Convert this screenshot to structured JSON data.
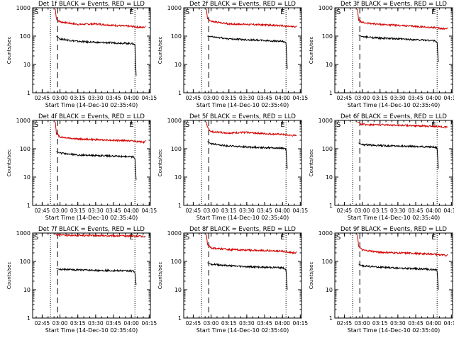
{
  "colors": {
    "events": "#000000",
    "lld": "#d40000",
    "axes": "#000000"
  },
  "chart_data": [
    {
      "type": "line",
      "title": "Det 1f BLACK = Events, RED = LLD",
      "xlabel": "Start Time (14-Dec-10 02:35:40)",
      "ylabel": "Counts/sec",
      "x_ticks": [
        "02:45",
        "03:00",
        "03:15",
        "03:30",
        "03:45",
        "04:00",
        "04:15"
      ],
      "y_ticks": [
        "1",
        "10",
        "100",
        "1000"
      ],
      "y_scale": "log",
      "ylim": [
        1,
        1000
      ],
      "markers": [
        "S",
        "E"
      ],
      "series": [
        {
          "color": "red",
          "x": [
            "02:56",
            "02:57",
            "03:00",
            "03:15",
            "03:30",
            "03:45",
            "04:00",
            "04:05",
            "04:11",
            "04:12"
          ],
          "values": [
            900,
            400,
            320,
            260,
            270,
            240,
            220,
            210,
            200,
            230
          ]
        },
        {
          "color": "black",
          "x": [
            "02:57",
            "03:00",
            "03:15",
            "03:30",
            "03:45",
            "04:00",
            "04:02",
            "04:03",
            "04:04"
          ],
          "values": [
            100,
            80,
            65,
            60,
            58,
            55,
            52,
            50,
            4
          ]
        }
      ]
    },
    {
      "type": "line",
      "title": "Det 2f BLACK = Events, RED = LLD",
      "xlabel": "Start Time (14-Dec-10 02:35:40)",
      "ylabel": "Counts/sec",
      "x_ticks": [
        "02:45",
        "03:00",
        "03:15",
        "03:30",
        "03:45",
        "04:00",
        "04:15"
      ],
      "y_ticks": [
        "1",
        "10",
        "100",
        "1000"
      ],
      "y_scale": "log",
      "ylim": [
        1,
        1000
      ],
      "markers": [
        "S",
        "E"
      ],
      "series": [
        {
          "color": "red",
          "x": [
            "02:56",
            "02:57",
            "03:00",
            "03:15",
            "03:30",
            "03:45",
            "04:00",
            "04:05",
            "04:11",
            "04:12"
          ],
          "values": [
            900,
            420,
            330,
            270,
            260,
            250,
            230,
            220,
            210,
            230
          ]
        },
        {
          "color": "black",
          "x": [
            "02:57",
            "03:00",
            "03:15",
            "03:30",
            "03:45",
            "04:00",
            "04:02",
            "04:03",
            "04:04"
          ],
          "values": [
            100,
            95,
            80,
            75,
            70,
            65,
            60,
            55,
            7
          ]
        }
      ]
    },
    {
      "type": "line",
      "title": "Det 3f BLACK = Events, RED = LLD",
      "xlabel": "Start Time (14-Dec-10 02:35:40)",
      "ylabel": "Counts/sec",
      "x_ticks": [
        "02:45",
        "03:00",
        "03:15",
        "03:30",
        "03:45",
        "04:00",
        "04:15"
      ],
      "y_ticks": [
        "1",
        "10",
        "100",
        "1000"
      ],
      "y_scale": "log",
      "ylim": [
        1,
        1000
      ],
      "markers": [
        "S",
        "E"
      ],
      "series": [
        {
          "color": "red",
          "x": [
            "02:56",
            "02:57",
            "03:00",
            "03:15",
            "03:30",
            "03:45",
            "04:00",
            "04:05",
            "04:11",
            "04:12"
          ],
          "values": [
            900,
            380,
            300,
            260,
            240,
            220,
            200,
            190,
            180,
            200
          ]
        },
        {
          "color": "black",
          "x": [
            "02:57",
            "03:00",
            "03:15",
            "03:30",
            "03:45",
            "04:00",
            "04:02",
            "04:03",
            "04:04"
          ],
          "values": [
            110,
            95,
            85,
            80,
            75,
            70,
            65,
            60,
            12
          ]
        }
      ]
    },
    {
      "type": "line",
      "title": "Det 4f BLACK = Events, RED = LLD",
      "xlabel": "Start Time (14-Dec-10 02:35:40)",
      "ylabel": "Counts/sec",
      "x_ticks": [
        "02:45",
        "03:00",
        "03:15",
        "03:30",
        "03:45",
        "04:00",
        "04:15"
      ],
      "y_ticks": [
        "1",
        "10",
        "100",
        "1000"
      ],
      "y_scale": "log",
      "ylim": [
        1,
        1000
      ],
      "markers": [
        "S",
        "E"
      ],
      "series": [
        {
          "color": "red",
          "x": [
            "02:56",
            "02:57",
            "03:00",
            "03:15",
            "03:30",
            "03:45",
            "04:00",
            "04:05",
            "04:11",
            "04:12"
          ],
          "values": [
            900,
            350,
            260,
            220,
            210,
            200,
            190,
            180,
            170,
            200
          ]
        },
        {
          "color": "black",
          "x": [
            "02:57",
            "03:00",
            "03:15",
            "03:30",
            "03:45",
            "04:00",
            "04:02",
            "04:03",
            "04:04"
          ],
          "values": [
            80,
            70,
            60,
            58,
            55,
            52,
            50,
            45,
            8
          ]
        }
      ]
    },
    {
      "type": "line",
      "title": "Det 5f BLACK = Events, RED = LLD",
      "xlabel": "Start Time (14-Dec-10 02:35:40)",
      "ylabel": "Counts/sec",
      "x_ticks": [
        "02:45",
        "03:00",
        "03:15",
        "03:30",
        "03:45",
        "04:00",
        "04:15"
      ],
      "y_ticks": [
        "1",
        "10",
        "100",
        "1000"
      ],
      "y_scale": "log",
      "ylim": [
        1,
        1000
      ],
      "markers": [
        "S",
        "E"
      ],
      "series": [
        {
          "color": "red",
          "x": [
            "02:56",
            "02:57",
            "03:00",
            "03:15",
            "03:30",
            "03:45",
            "04:00",
            "04:05",
            "04:11",
            "04:12"
          ],
          "values": [
            900,
            550,
            400,
            360,
            380,
            340,
            320,
            300,
            290,
            300
          ]
        },
        {
          "color": "black",
          "x": [
            "02:57",
            "03:00",
            "03:15",
            "03:30",
            "03:45",
            "04:00",
            "04:02",
            "04:03",
            "04:04"
          ],
          "values": [
            180,
            150,
            125,
            115,
            110,
            105,
            100,
            95,
            20
          ]
        }
      ]
    },
    {
      "type": "line",
      "title": "Det 6f BLACK = Events, RED = LLD",
      "xlabel": "Start Time (14-Dec-10 02:35:40)",
      "ylabel": "Counts/sec",
      "x_ticks": [
        "02:45",
        "03:00",
        "03:15",
        "03:30",
        "03:45",
        "04:00",
        "04:15"
      ],
      "y_ticks": [
        "1",
        "10",
        "100",
        "1000"
      ],
      "y_scale": "log",
      "ylim": [
        1,
        1000
      ],
      "markers": [
        "S",
        "E"
      ],
      "series": [
        {
          "color": "red",
          "x": [
            "02:56",
            "02:57",
            "03:00",
            "03:15",
            "03:30",
            "03:45",
            "04:00",
            "04:05",
            "04:11",
            "04:12"
          ],
          "values": [
            900,
            800,
            720,
            700,
            680,
            650,
            620,
            600,
            580,
            600
          ]
        },
        {
          "color": "black",
          "x": [
            "02:57",
            "03:00",
            "03:15",
            "03:30",
            "03:45",
            "04:00",
            "04:02",
            "04:03",
            "04:04"
          ],
          "values": [
            160,
            140,
            130,
            125,
            120,
            115,
            110,
            105,
            20
          ]
        }
      ]
    },
    {
      "type": "line",
      "title": "Det 7f BLACK = Events, RED = LLD",
      "xlabel": "Start Time (14-Dec-10 02:35:40)",
      "ylabel": "Counts/sec",
      "x_ticks": [
        "02:45",
        "03:00",
        "03:15",
        "03:30",
        "03:45",
        "04:00",
        "04:15"
      ],
      "y_ticks": [
        "1",
        "10",
        "100",
        "1000"
      ],
      "y_scale": "log",
      "ylim": [
        1,
        1000
      ],
      "markers": [
        "S",
        "E"
      ],
      "series": [
        {
          "color": "red",
          "x": [
            "02:56",
            "02:57",
            "03:00",
            "03:15",
            "03:30",
            "03:45",
            "04:00",
            "04:05",
            "04:11",
            "04:12"
          ],
          "values": [
            950,
            880,
            850,
            830,
            810,
            800,
            790,
            780,
            760,
            780
          ]
        },
        {
          "color": "black",
          "x": [
            "02:57",
            "03:00",
            "03:15",
            "03:30",
            "03:45",
            "04:00",
            "04:02",
            "04:03",
            "04:04"
          ],
          "values": [
            55,
            52,
            50,
            48,
            47,
            46,
            45,
            40,
            15
          ]
        }
      ]
    },
    {
      "type": "line",
      "title": "Det 8f BLACK = Events, RED = LLD",
      "xlabel": "Start Time (14-Dec-10 02:35:40)",
      "ylabel": "Counts/sec",
      "x_ticks": [
        "02:45",
        "03:00",
        "03:15",
        "03:30",
        "03:45",
        "04:00",
        "04:15"
      ],
      "y_ticks": [
        "1",
        "10",
        "100",
        "1000"
      ],
      "y_scale": "log",
      "ylim": [
        1,
        1000
      ],
      "markers": [
        "S",
        "E"
      ],
      "series": [
        {
          "color": "red",
          "x": [
            "02:56",
            "02:57",
            "03:00",
            "03:15",
            "03:30",
            "03:45",
            "04:00",
            "04:05",
            "04:11",
            "04:12"
          ],
          "values": [
            900,
            400,
            300,
            260,
            250,
            240,
            230,
            210,
            200,
            220
          ]
        },
        {
          "color": "black",
          "x": [
            "02:57",
            "03:00",
            "03:15",
            "03:30",
            "03:45",
            "04:00",
            "04:02",
            "04:03",
            "04:04"
          ],
          "values": [
            90,
            80,
            70,
            65,
            62,
            60,
            55,
            50,
            10
          ]
        }
      ]
    },
    {
      "type": "line",
      "title": "Det 9f BLACK = Events, RED = LLD",
      "xlabel": "Start Time (14-Dec-10 02:35:40)",
      "ylabel": "Counts/sec",
      "x_ticks": [
        "02:45",
        "03:00",
        "03:15",
        "03:30",
        "03:45",
        "04:00",
        "04:15"
      ],
      "y_ticks": [
        "1",
        "10",
        "100",
        "1000"
      ],
      "y_scale": "log",
      "ylim": [
        1,
        1000
      ],
      "markers": [
        "S",
        "E"
      ],
      "series": [
        {
          "color": "red",
          "x": [
            "02:56",
            "02:57",
            "03:00",
            "03:15",
            "03:30",
            "03:45",
            "04:00",
            "04:05",
            "04:11",
            "04:12"
          ],
          "values": [
            900,
            350,
            250,
            210,
            200,
            190,
            180,
            170,
            160,
            180
          ]
        },
        {
          "color": "black",
          "x": [
            "02:57",
            "03:00",
            "03:15",
            "03:30",
            "03:45",
            "04:00",
            "04:02",
            "04:03",
            "04:04"
          ],
          "values": [
            80,
            70,
            62,
            58,
            55,
            52,
            50,
            45,
            10
          ]
        }
      ]
    }
  ]
}
